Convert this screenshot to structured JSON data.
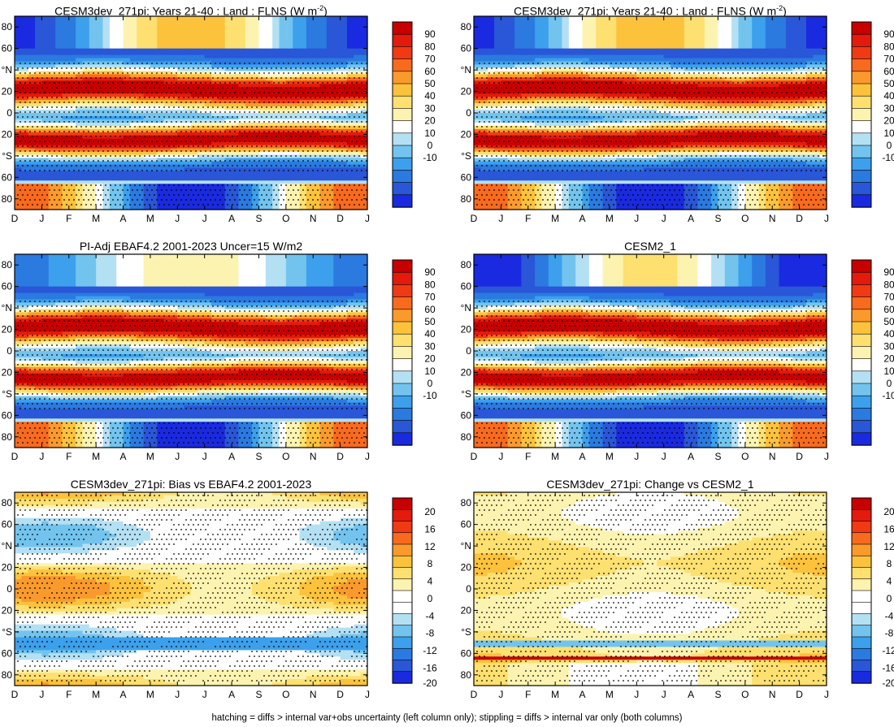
{
  "footnote": "hatching = diffs > internal var+obs uncertainty (left column only); stippling = diffs > internal var only (both columns)",
  "month_labels": [
    "D",
    "J",
    "F",
    "M",
    "A",
    "M",
    "J",
    "J",
    "A",
    "S",
    "O",
    "N",
    "D",
    "J"
  ],
  "lat_ticks": [
    {
      "value": 80,
      "label": "80"
    },
    {
      "value": 60,
      "label": "60"
    },
    {
      "value": 40,
      "label": "°N"
    },
    {
      "value": 20,
      "label": "20"
    },
    {
      "value": 0,
      "label": "0"
    },
    {
      "value": -20,
      "label": "20"
    },
    {
      "value": -40,
      "label": "°S"
    },
    {
      "value": -60,
      "label": "60"
    },
    {
      "value": -80,
      "label": "80"
    }
  ],
  "colorbars": {
    "flns": {
      "labels": [
        "90",
        "80",
        "70",
        "60",
        "50",
        "40",
        "30",
        "20",
        "10",
        "0",
        "-10"
      ],
      "colors": [
        "#c80000",
        "#e41a0c",
        "#f03a14",
        "#f86a1e",
        "#fb9a2c",
        "#fcc23c",
        "#fde070",
        "#fdf3b0",
        "#ffffff",
        "#b4e0f4",
        "#72c4ee",
        "#3ca0ec",
        "#2a7ae0",
        "#2a56d8",
        "#1a2ae0"
      ]
    },
    "diff": {
      "labels": [
        "20",
        "16",
        "12",
        "8",
        "4",
        "0",
        "-4",
        "-8",
        "-12",
        "-16",
        "-20"
      ],
      "colors": [
        "#c80000",
        "#e41a0c",
        "#f03a14",
        "#f86a1e",
        "#fb9a2c",
        "#fcc23c",
        "#fde070",
        "#fdf3b0",
        "#ffffff",
        "#ffffff",
        "#b4e0f4",
        "#72c4ee",
        "#3ca0ec",
        "#2a7ae0",
        "#2a56d8",
        "#1a2ae0"
      ]
    }
  },
  "panels": [
    {
      "title": "CESM3dev_271pi: Years 21-40 : Land : FLNS (W m",
      "title_sup": "-2",
      "title_end": ")",
      "colorbar": "flns"
    },
    {
      "title": "CESM3dev_271pi: Years 21-40 : Land : FLNS (W m",
      "title_sup": "-2",
      "title_end": ")",
      "colorbar": "flns"
    },
    {
      "title": "PI-Adj EBAF4.2 2001-2023 Uncer=15 W/m2",
      "title_sup": "",
      "title_end": "",
      "colorbar": "flns"
    },
    {
      "title": "CESM2_1",
      "title_sup": "",
      "title_end": "",
      "colorbar": "flns"
    },
    {
      "title": "CESM3dev_271pi: Bias vs EBAF4.2 2001-2023",
      "title_sup": "",
      "title_end": "",
      "colorbar": "diff"
    },
    {
      "title": "CESM3dev_271pi: Change vs CESM2_1",
      "title_sup": "",
      "title_end": "",
      "colorbar": "diff"
    }
  ],
  "chart_data": [
    {
      "type": "heatmap",
      "title": "CESM3dev_271pi: Years 21-40 : Land : FLNS (W m-2)",
      "x": [
        "D",
        "J",
        "F",
        "M",
        "A",
        "M",
        "J",
        "J",
        "A",
        "S",
        "O",
        "N",
        "D",
        "J"
      ],
      "ylim": [
        -90,
        90
      ],
      "zlim": [
        -10,
        90
      ],
      "z_levels": [
        -10,
        0,
        10,
        20,
        30,
        40,
        50,
        60,
        70,
        80,
        90
      ]
    },
    {
      "type": "heatmap",
      "title": "CESM3dev_271pi: Years 21-40 : Land : FLNS (W m-2)",
      "x": [
        "D",
        "J",
        "F",
        "M",
        "A",
        "M",
        "J",
        "J",
        "A",
        "S",
        "O",
        "N",
        "D",
        "J"
      ],
      "ylim": [
        -90,
        90
      ],
      "zlim": [
        -10,
        90
      ],
      "z_levels": [
        -10,
        0,
        10,
        20,
        30,
        40,
        50,
        60,
        70,
        80,
        90
      ]
    },
    {
      "type": "heatmap",
      "title": "PI-Adj EBAF4.2 2001-2023 Uncer=15 W/m2",
      "x": [
        "D",
        "J",
        "F",
        "M",
        "A",
        "M",
        "J",
        "J",
        "A",
        "S",
        "O",
        "N",
        "D",
        "J"
      ],
      "ylim": [
        -90,
        90
      ],
      "zlim": [
        -10,
        90
      ],
      "z_levels": [
        -10,
        0,
        10,
        20,
        30,
        40,
        50,
        60,
        70,
        80,
        90
      ]
    },
    {
      "type": "heatmap",
      "title": "CESM2_1",
      "x": [
        "D",
        "J",
        "F",
        "M",
        "A",
        "M",
        "J",
        "J",
        "A",
        "S",
        "O",
        "N",
        "D",
        "J"
      ],
      "ylim": [
        -90,
        90
      ],
      "zlim": [
        -10,
        90
      ],
      "z_levels": [
        -10,
        0,
        10,
        20,
        30,
        40,
        50,
        60,
        70,
        80,
        90
      ]
    },
    {
      "type": "heatmap",
      "title": "CESM3dev_271pi: Bias vs EBAF4.2 2001-2023",
      "x": [
        "D",
        "J",
        "F",
        "M",
        "A",
        "M",
        "J",
        "J",
        "A",
        "S",
        "O",
        "N",
        "D",
        "J"
      ],
      "ylim": [
        -90,
        90
      ],
      "zlim": [
        -20,
        20
      ],
      "z_levels": [
        -20,
        -16,
        -12,
        -8,
        -4,
        0,
        4,
        8,
        12,
        16,
        20
      ]
    },
    {
      "type": "heatmap",
      "title": "CESM3dev_271pi: Change vs CESM2_1",
      "x": [
        "D",
        "J",
        "F",
        "M",
        "A",
        "M",
        "J",
        "J",
        "A",
        "S",
        "O",
        "N",
        "D",
        "J"
      ],
      "ylim": [
        -90,
        90
      ],
      "zlim": [
        -20,
        20
      ],
      "z_levels": [
        -20,
        -16,
        -12,
        -8,
        -4,
        0,
        4,
        8,
        12,
        16,
        20
      ]
    }
  ]
}
